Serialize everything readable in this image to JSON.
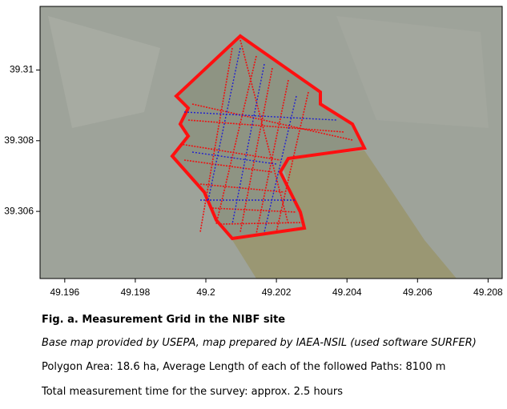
{
  "map": {
    "xlim": [
      49.1953,
      49.2084
    ],
    "ylim": [
      39.3041,
      39.3118
    ],
    "xticks": [
      49.196,
      49.198,
      49.2,
      49.202,
      49.204,
      49.206,
      49.208
    ],
    "yticks": [
      39.306,
      39.308,
      39.31
    ]
  },
  "caption": {
    "title": "Fig. a. Measurement Grid in the NIBF site",
    "lines": [
      "Base map provided by USEPA, map prepared by IAEA-NSIL (used software SURFER)",
      "Polygon Area: 18.6 ha, Average Length of each of the followed Paths: 8100 m",
      "Total measurement time for the survey: approx. 2.5 hours"
    ]
  }
}
